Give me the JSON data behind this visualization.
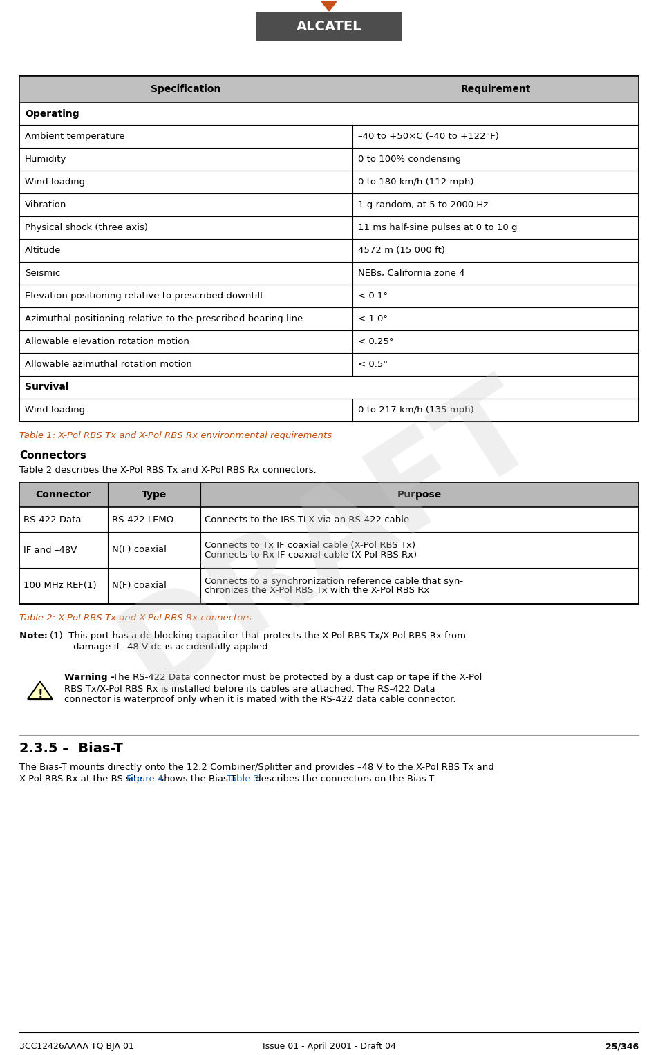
{
  "page_width": 9.52,
  "page_height": 15.27,
  "bg_color": "#ffffff",
  "alcatel_box_color": "#4d4d4d",
  "alcatel_arrow_color": "#c8501a",
  "table1_caption": "Table 1: X-Pol RBS Tx and X-Pol RBS Rx environmental requirements",
  "connectors_heading": "Connectors",
  "connectors_intro": "Table 2 describes the X-Pol RBS Tx and X-Pol RBS Rx connectors.",
  "table2_caption": "Table 2: X-Pol RBS Tx and X-Pol RBS Rx connectors",
  "section_heading": "2.3.5 –  Bias-T",
  "section_body1": "The Bias-T mounts directly onto the 12:2 Combiner/Splitter and provides –48 V to the X-Pol RBS Tx and",
  "section_body2": "X-Pol RBS Rx at the BS site. ",
  "section_body2_link": "Figure 4",
  "section_body2_rest": " shows the Bias-T. ",
  "section_body2_link2": "Table 3",
  "section_body2_end": " describes the connectors on the Bias-T.",
  "footer_left": "3CC12426AAAA TQ BJA 01",
  "footer_center": "Issue 01 - April 2001 - Draft 04",
  "footer_right": "25/346",
  "table1_rows": [
    {
      "spec": "Operating",
      "req": "",
      "bold": true,
      "span": true
    },
    {
      "spec": "Ambient temperature",
      "req": "–40 to +50×C (–40 to +122°F)",
      "bold": false,
      "span": false
    },
    {
      "spec": "Humidity",
      "req": "0 to 100% condensing",
      "bold": false,
      "span": false
    },
    {
      "spec": "Wind loading",
      "req": "0 to 180 km/h (112 mph)",
      "bold": false,
      "span": false
    },
    {
      "spec": "Vibration",
      "req": "1 g random, at 5 to 2000 Hz",
      "bold": false,
      "span": false
    },
    {
      "spec": "Physical shock (three axis)",
      "req": "11 ms half-sine pulses at 0 to 10 g",
      "bold": false,
      "span": false
    },
    {
      "spec": "Altitude",
      "req": "4572 m (15 000 ft)",
      "bold": false,
      "span": false
    },
    {
      "spec": "Seismic",
      "req": "NEBs, California zone 4",
      "bold": false,
      "span": false
    },
    {
      "spec": "Elevation positioning relative to prescribed downtilt",
      "req": "< 0.1°",
      "bold": false,
      "span": false
    },
    {
      "spec": "Azimuthal positioning relative to the prescribed bearing line",
      "req": "< 1.0°",
      "bold": false,
      "span": false
    },
    {
      "spec": "Allowable elevation rotation motion",
      "req": "< 0.25°",
      "bold": false,
      "span": false
    },
    {
      "spec": "Allowable azimuthal rotation motion",
      "req": "< 0.5°",
      "bold": false,
      "span": false
    },
    {
      "spec": "Survival",
      "req": "",
      "bold": true,
      "span": true
    },
    {
      "spec": "Wind loading",
      "req": "0 to 217 km/h (135 mph)",
      "bold": false,
      "span": false
    }
  ],
  "table2_rows": [
    {
      "conn": "RS-422 Data",
      "type": "RS-422 LEMO",
      "purpose": "Connects to the IBS-TLX via an RS-422 cable"
    },
    {
      "conn": "IF and –48V",
      "type": "N(F) coaxial",
      "purpose": "Connects to Tx IF coaxial cable (X-Pol RBS Tx)\nConnects to Rx IF coaxial cable (X-Pol RBS Rx)"
    },
    {
      "conn": "100 MHz REF(1)",
      "type": "N(F) coaxial",
      "purpose": "Connects to a synchronization reference cable that syn-\nchronizes the X-Pol RBS Tx with the X-Pol RBS Rx"
    }
  ]
}
